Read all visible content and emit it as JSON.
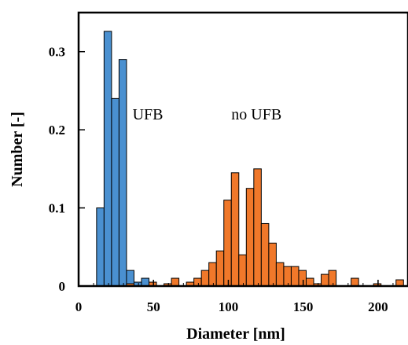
{
  "chart_data": {
    "type": "bar",
    "title": "",
    "xlabel": "Diameter  [nm]",
    "ylabel": "Number  [-]",
    "xlim": [
      0,
      220
    ],
    "ylim": [
      0,
      0.35
    ],
    "x_ticks": [
      0,
      50,
      100,
      150,
      200
    ],
    "y_ticks": [
      0,
      0.1,
      0.2,
      0.3
    ],
    "x_tick_labels": [
      "0",
      "50",
      "100",
      "150",
      "200"
    ],
    "y_tick_labels": [
      "0",
      "0.1",
      "0.2",
      "0.3"
    ],
    "bin_width": 5,
    "grid": false,
    "series": [
      {
        "name": "UFB",
        "color": "#4a90d0",
        "bin_starts": [
          12,
          17,
          22,
          27,
          32,
          37,
          42
        ],
        "values": [
          0.1,
          0.326,
          0.24,
          0.29,
          0.02,
          0.005,
          0.01
        ]
      },
      {
        "name": "no UFB",
        "color": "#f0782a",
        "bin_starts": [
          32,
          47,
          57,
          62,
          72,
          77,
          82,
          87,
          92,
          97,
          102,
          107,
          112,
          117,
          122,
          127,
          132,
          137,
          142,
          147,
          152,
          157,
          162,
          167,
          182,
          197,
          212
        ],
        "values": [
          0.003,
          0.005,
          0.003,
          0.01,
          0.005,
          0.01,
          0.02,
          0.03,
          0.045,
          0.11,
          0.145,
          0.04,
          0.125,
          0.15,
          0.08,
          0.055,
          0.03,
          0.025,
          0.025,
          0.02,
          0.01,
          0.003,
          0.015,
          0.02,
          0.01,
          0.003,
          0.008
        ]
      }
    ],
    "annotations": [
      {
        "text": "UFB",
        "x": 36,
        "y": 0.213
      },
      {
        "text": "no UFB",
        "x": 102,
        "y": 0.213
      }
    ]
  }
}
